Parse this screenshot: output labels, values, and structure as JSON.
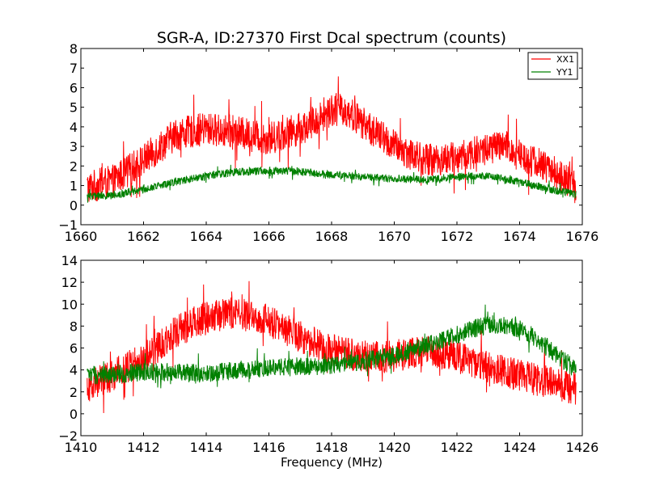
{
  "chart_data": [
    {
      "type": "line",
      "title": "SGR-A, ID:27370 First Dcal spectrum (counts)",
      "xlabel": "",
      "ylabel": "",
      "xlim": [
        1660,
        1676
      ],
      "ylim": [
        -1,
        8
      ],
      "xticks": [
        "1660",
        "1662",
        "1664",
        "1666",
        "1668",
        "1670",
        "1672",
        "1674",
        "1676"
      ],
      "yticks": [
        "−1",
        "0",
        "1",
        "2",
        "3",
        "4",
        "5",
        "6",
        "7",
        "8"
      ],
      "legend": {
        "placement": "top-right",
        "entries": [
          "XX1",
          "YY1"
        ]
      },
      "grid": false,
      "series": [
        {
          "name": "XX1",
          "color": "#ff0000",
          "noise": 0.85,
          "envelope": [
            [
              1660.2,
              0.9
            ],
            [
              1661,
              1.2
            ],
            [
              1662,
              2.3
            ],
            [
              1663,
              3.6
            ],
            [
              1664,
              3.9
            ],
            [
              1665,
              3.7
            ],
            [
              1666,
              3.4
            ],
            [
              1667,
              3.9
            ],
            [
              1667.5,
              4.3
            ],
            [
              1668,
              4.9
            ],
            [
              1668.5,
              4.8
            ],
            [
              1669,
              4.2
            ],
            [
              1670,
              3.0
            ],
            [
              1671,
              2.3
            ],
            [
              1672,
              2.4
            ],
            [
              1673,
              2.9
            ],
            [
              1673.5,
              3.0
            ],
            [
              1674,
              2.6
            ],
            [
              1675,
              1.8
            ],
            [
              1675.8,
              0.9
            ]
          ]
        },
        {
          "name": "YY1",
          "color": "#008000",
          "noise": 0.2,
          "envelope": [
            [
              1660.2,
              0.45
            ],
            [
              1661,
              0.5
            ],
            [
              1662,
              0.8
            ],
            [
              1663,
              1.2
            ],
            [
              1664,
              1.5
            ],
            [
              1665,
              1.7
            ],
            [
              1666,
              1.75
            ],
            [
              1667,
              1.7
            ],
            [
              1668,
              1.55
            ],
            [
              1669,
              1.45
            ],
            [
              1670,
              1.35
            ],
            [
              1671,
              1.3
            ],
            [
              1672,
              1.45
            ],
            [
              1673,
              1.5
            ],
            [
              1674,
              1.2
            ],
            [
              1675,
              0.8
            ],
            [
              1675.8,
              0.55
            ]
          ]
        }
      ]
    },
    {
      "type": "line",
      "title": "",
      "xlabel": "Frequency (MHz)",
      "ylabel": "",
      "xlim": [
        1410,
        1426
      ],
      "ylim": [
        -2,
        14
      ],
      "xticks": [
        "1410",
        "1412",
        "1414",
        "1416",
        "1418",
        "1420",
        "1422",
        "1424",
        "1426"
      ],
      "yticks": [
        "−2",
        "0",
        "2",
        "4",
        "6",
        "8",
        "10",
        "12",
        "14"
      ],
      "grid": false,
      "series": [
        {
          "name": "XX1",
          "color": "#ff0000",
          "noise": 1.5,
          "envelope": [
            [
              1410.2,
              2.5
            ],
            [
              1411,
              3.5
            ],
            [
              1412,
              5.0
            ],
            [
              1413,
              7.5
            ],
            [
              1414,
              8.8
            ],
            [
              1415,
              9.2
            ],
            [
              1416,
              8.5
            ],
            [
              1417,
              7.0
            ],
            [
              1418,
              5.8
            ],
            [
              1419,
              5.2
            ],
            [
              1420,
              5.3
            ],
            [
              1421,
              5.8
            ],
            [
              1422,
              5.2
            ],
            [
              1423,
              4.2
            ],
            [
              1424,
              3.5
            ],
            [
              1425,
              2.8
            ],
            [
              1425.8,
              2.3
            ]
          ]
        },
        {
          "name": "YY1",
          "color": "#008000",
          "noise": 0.85,
          "envelope": [
            [
              1410.2,
              3.5
            ],
            [
              1411,
              3.6
            ],
            [
              1412,
              3.8
            ],
            [
              1413,
              3.8
            ],
            [
              1414,
              3.7
            ],
            [
              1415,
              4.0
            ],
            [
              1416,
              4.2
            ],
            [
              1417,
              4.3
            ],
            [
              1418,
              4.4
            ],
            [
              1419,
              4.8
            ],
            [
              1420,
              5.3
            ],
            [
              1421,
              6.2
            ],
            [
              1422,
              7.2
            ],
            [
              1423,
              8.2
            ],
            [
              1424,
              7.8
            ],
            [
              1425,
              5.8
            ],
            [
              1425.8,
              4.0
            ]
          ]
        }
      ]
    }
  ]
}
